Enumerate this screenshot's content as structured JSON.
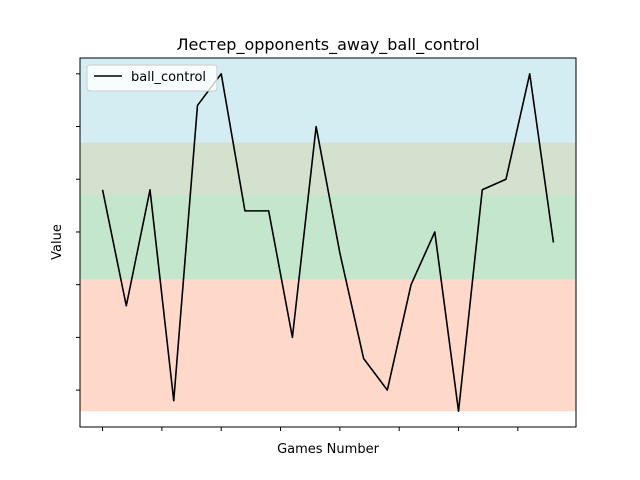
{
  "chart_data": {
    "type": "line",
    "title": "Лестер_opponents_away_ball_control",
    "xlabel": "Games Number",
    "ylabel": "Value",
    "xlim": [
      -0.95,
      19.95
    ],
    "ylim": [
      -0.15,
      3.35
    ],
    "x": [
      0,
      1,
      2,
      3,
      4,
      5,
      6,
      7,
      8,
      9,
      10,
      11,
      12,
      13,
      14,
      15,
      16,
      17,
      18,
      19
    ],
    "x_ticks": [
      0,
      2.5,
      5,
      7.5,
      10,
      12.5,
      15,
      17.5
    ],
    "y_ticks": [
      0.2,
      0.7,
      1.2,
      1.7,
      2.2,
      2.7,
      3.2
    ],
    "series": [
      {
        "name": "ball_control",
        "color": "#000000",
        "values": [
          2.1,
          1.0,
          2.1,
          0.1,
          2.9,
          3.2,
          1.9,
          1.9,
          0.7,
          2.7,
          1.5,
          0.5,
          0.2,
          1.2,
          1.7,
          0.0,
          2.1,
          2.2,
          3.2,
          1.6
        ]
      }
    ],
    "bands": [
      {
        "from": 0.0,
        "to": 1.25,
        "color": "#fdb99e"
      },
      {
        "from": 1.25,
        "to": 2.05,
        "color": "#92d2a4"
      },
      {
        "from": 2.05,
        "to": 2.55,
        "color": "#aec9a6"
      },
      {
        "from": 2.55,
        "to": 3.35,
        "color": "#b0dfe8"
      }
    ],
    "band_opacity": 0.55,
    "legend_position": "upper left",
    "grid": false
  }
}
